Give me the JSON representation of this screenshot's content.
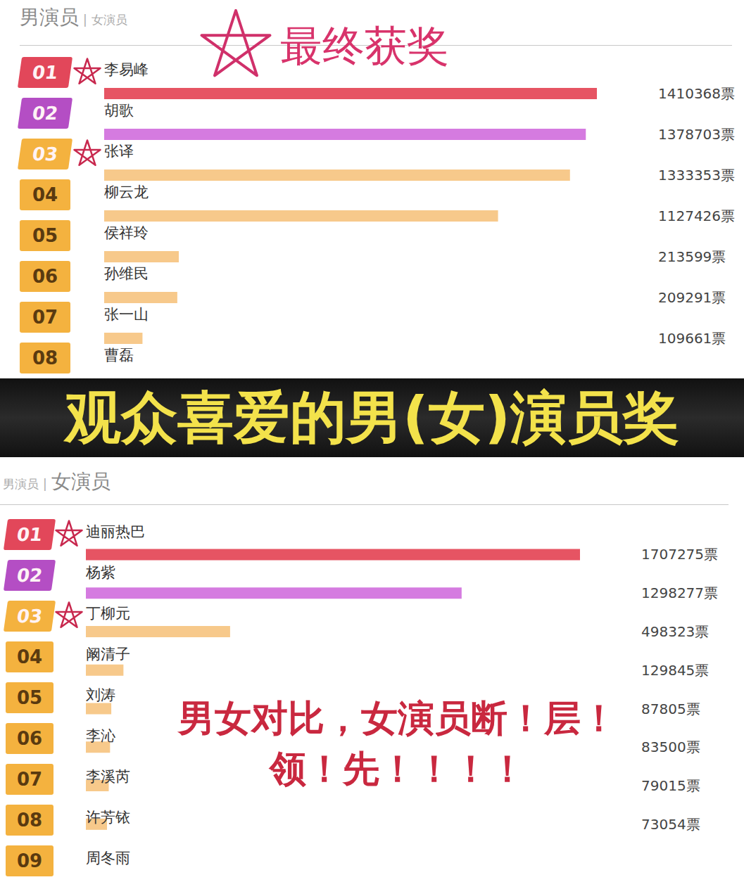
{
  "banner": "观众喜爱的男(女)演员奖",
  "chart_data": [
    {
      "type": "bar",
      "orientation": "horizontal",
      "tabs": [
        "男演员",
        "女演员"
      ],
      "tab_separator": "|",
      "active_tab": "男演员",
      "annotation": "最终获奖",
      "ranks": [
        "01",
        "02",
        "03",
        "04",
        "05",
        "06",
        "07",
        "08"
      ],
      "categories": [
        "李易峰",
        "胡歌",
        "张译",
        "柳云龙",
        "侯祥玲",
        "孙维民",
        "张一山",
        "曹磊"
      ],
      "values": [
        1410368,
        1378703,
        1333353,
        1127426,
        213599,
        209291,
        109661,
        null
      ],
      "value_labels": [
        "1410368票",
        "1378703票",
        "1333353票",
        "1127426票",
        "213599票",
        "209291票",
        "109661票",
        null
      ],
      "colors": [
        "#e65463",
        "#d57be0",
        "#f7c98b",
        "#f7c98b",
        "#f7c98b",
        "#f7c98b",
        "#f7c98b",
        "#f7c98b"
      ],
      "highlighted": [
        "李易峰",
        "张译"
      ],
      "xlim": [
        0,
        1410368
      ],
      "tick_labels": false,
      "grid": false,
      "data_labels": true
    },
    {
      "type": "bar",
      "orientation": "horizontal",
      "tabs": [
        "男演员",
        "女演员"
      ],
      "tab_separator": "|",
      "active_tab": "女演员",
      "annotation": "男女对比，女演员断！层！领！先！！！！",
      "ranks": [
        "01",
        "02",
        "03",
        "04",
        "05",
        "06",
        "07",
        "08",
        "09"
      ],
      "categories": [
        "迪丽热巴",
        "杨紫",
        "丁柳元",
        "阚清子",
        "刘涛",
        "李沁",
        "李溪芮",
        "许芳铱",
        "周冬雨"
      ],
      "values": [
        1707275,
        1298277,
        498323,
        129845,
        87805,
        83500,
        79015,
        73054,
        null
      ],
      "value_labels": [
        "1707275票",
        "1298277票",
        "498323票",
        "129845票",
        "87805票",
        "83500票",
        "79015票",
        "73054票",
        null
      ],
      "colors": [
        "#e65463",
        "#d57be0",
        "#f7c98b",
        "#f7c98b",
        "#f7c98b",
        "#f7c98b",
        "#f7c98b",
        "#f7c98b",
        "#f7c98b"
      ],
      "highlighted": [
        "迪丽热巴",
        "丁柳元"
      ],
      "xlim": [
        0,
        1707275
      ],
      "tick_labels": false,
      "grid": false,
      "data_labels": true
    }
  ]
}
